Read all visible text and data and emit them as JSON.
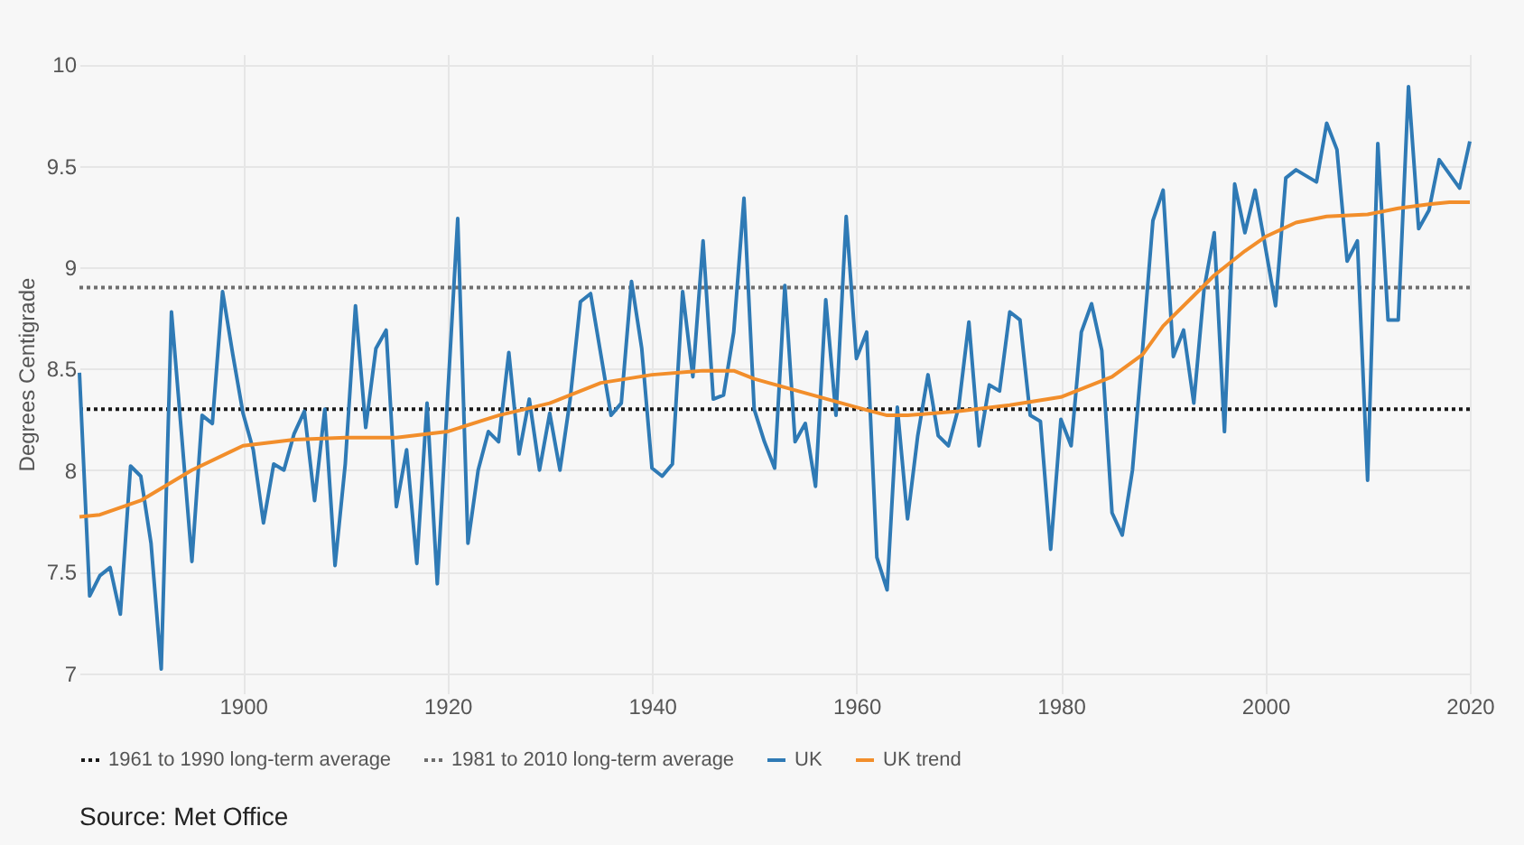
{
  "chart_data": {
    "type": "line",
    "ylabel": "Degrees Centigrade",
    "annotations": [
      "Source: Met Office"
    ],
    "xlim": [
      1884,
      2020
    ],
    "xticks": [
      1900,
      1920,
      1940,
      1960,
      1980,
      2000,
      2020
    ],
    "ylim": [
      6.9,
      10.05
    ],
    "yticks": [
      7,
      7.5,
      8,
      8.5,
      9,
      9.5,
      10
    ],
    "grid": true,
    "legend": "bottom",
    "marker": "none",
    "line_style": "solid",
    "ref_lines": [
      {
        "axis": "y",
        "value": 8.3,
        "label": "1961 to 1990 long-term average",
        "color": "#1a1a1a",
        "line_style": "dotted"
      },
      {
        "axis": "y",
        "value": 8.9,
        "label": "1981 to 2010 long-term average",
        "color": "#6e6e6e",
        "line_style": "dotted"
      }
    ],
    "series": [
      {
        "name": "UK",
        "color": "#2f7ab5",
        "x": [
          1884,
          1885,
          1886,
          1887,
          1888,
          1889,
          1890,
          1891,
          1892,
          1893,
          1894,
          1895,
          1896,
          1897,
          1898,
          1899,
          1900,
          1901,
          1902,
          1903,
          1904,
          1905,
          1906,
          1907,
          1908,
          1909,
          1910,
          1911,
          1912,
          1913,
          1914,
          1915,
          1916,
          1917,
          1918,
          1919,
          1920,
          1921,
          1922,
          1923,
          1924,
          1925,
          1926,
          1927,
          1928,
          1929,
          1930,
          1931,
          1932,
          1933,
          1934,
          1935,
          1936,
          1937,
          1938,
          1939,
          1940,
          1941,
          1942,
          1943,
          1944,
          1945,
          1946,
          1947,
          1948,
          1949,
          1950,
          1951,
          1952,
          1953,
          1954,
          1955,
          1956,
          1957,
          1958,
          1959,
          1960,
          1961,
          1962,
          1963,
          1964,
          1965,
          1966,
          1967,
          1968,
          1969,
          1970,
          1971,
          1972,
          1973,
          1974,
          1975,
          1976,
          1977,
          1978,
          1979,
          1980,
          1981,
          1982,
          1983,
          1984,
          1985,
          1986,
          1987,
          1988,
          1989,
          1990,
          1991,
          1992,
          1993,
          1994,
          1995,
          1996,
          1997,
          1998,
          1999,
          2000,
          2001,
          2002,
          2003,
          2004,
          2005,
          2006,
          2007,
          2008,
          2009,
          2010,
          2011,
          2012,
          2013,
          2014,
          2015,
          2016,
          2017,
          2018,
          2019,
          2020
        ],
        "values": [
          8.48,
          7.38,
          7.48,
          7.52,
          7.29,
          8.02,
          7.97,
          7.64,
          7.02,
          8.78,
          8.17,
          7.55,
          8.27,
          8.23,
          8.88,
          8.57,
          8.28,
          8.1,
          7.74,
          8.03,
          8.0,
          8.18,
          8.29,
          7.85,
          8.3,
          7.53,
          8.03,
          8.81,
          8.21,
          8.6,
          8.69,
          7.82,
          8.1,
          7.54,
          8.33,
          7.44,
          8.35,
          9.24,
          7.64,
          8.0,
          8.19,
          8.14,
          8.58,
          8.08,
          8.35,
          8.0,
          8.28,
          8.0,
          8.35,
          8.83,
          8.87,
          8.57,
          8.27,
          8.33,
          8.93,
          8.6,
          8.01,
          7.97,
          8.03,
          8.88,
          8.46,
          9.13,
          8.35,
          8.37,
          8.68,
          9.34,
          8.3,
          8.14,
          8.01,
          8.91,
          8.14,
          8.23,
          7.92,
          8.84,
          8.27,
          9.25,
          8.55,
          8.68,
          7.57,
          7.41,
          8.31,
          7.76,
          8.17,
          8.47,
          8.17,
          8.12,
          8.31,
          8.73,
          8.12,
          8.42,
          8.39,
          8.78,
          8.74,
          8.27,
          8.24,
          7.61,
          8.25,
          8.12,
          8.68,
          8.82,
          8.59,
          7.79,
          7.68,
          8.0,
          8.6,
          9.23,
          9.38,
          8.56,
          8.69,
          8.33,
          8.89,
          9.17,
          8.19,
          9.41,
          9.17,
          9.38,
          9.1,
          8.81,
          9.44,
          9.48,
          9.45,
          9.42,
          9.71,
          9.58,
          9.03,
          9.13,
          7.95,
          9.61,
          8.74,
          8.74,
          9.89,
          9.19,
          9.28,
          9.53,
          9.46,
          9.39,
          9.62
        ]
      },
      {
        "name": "UK trend",
        "color": "#f28e2b",
        "x": [
          1884,
          1886,
          1890,
          1895,
          1900,
          1905,
          1910,
          1915,
          1920,
          1925,
          1930,
          1935,
          1940,
          1945,
          1948,
          1950,
          1955,
          1960,
          1963,
          1965,
          1970,
          1975,
          1980,
          1985,
          1988,
          1990,
          1993,
          1995,
          1998,
          2000,
          2003,
          2006,
          2010,
          2013,
          2016,
          2018,
          2020
        ],
        "values": [
          7.77,
          7.78,
          7.85,
          8.0,
          8.12,
          8.15,
          8.16,
          8.16,
          8.19,
          8.27,
          8.33,
          8.43,
          8.47,
          8.49,
          8.49,
          8.45,
          8.38,
          8.31,
          8.27,
          8.27,
          8.29,
          8.32,
          8.36,
          8.46,
          8.57,
          8.71,
          8.86,
          8.96,
          9.08,
          9.15,
          9.22,
          9.25,
          9.26,
          9.29,
          9.31,
          9.32,
          9.32
        ]
      }
    ]
  }
}
